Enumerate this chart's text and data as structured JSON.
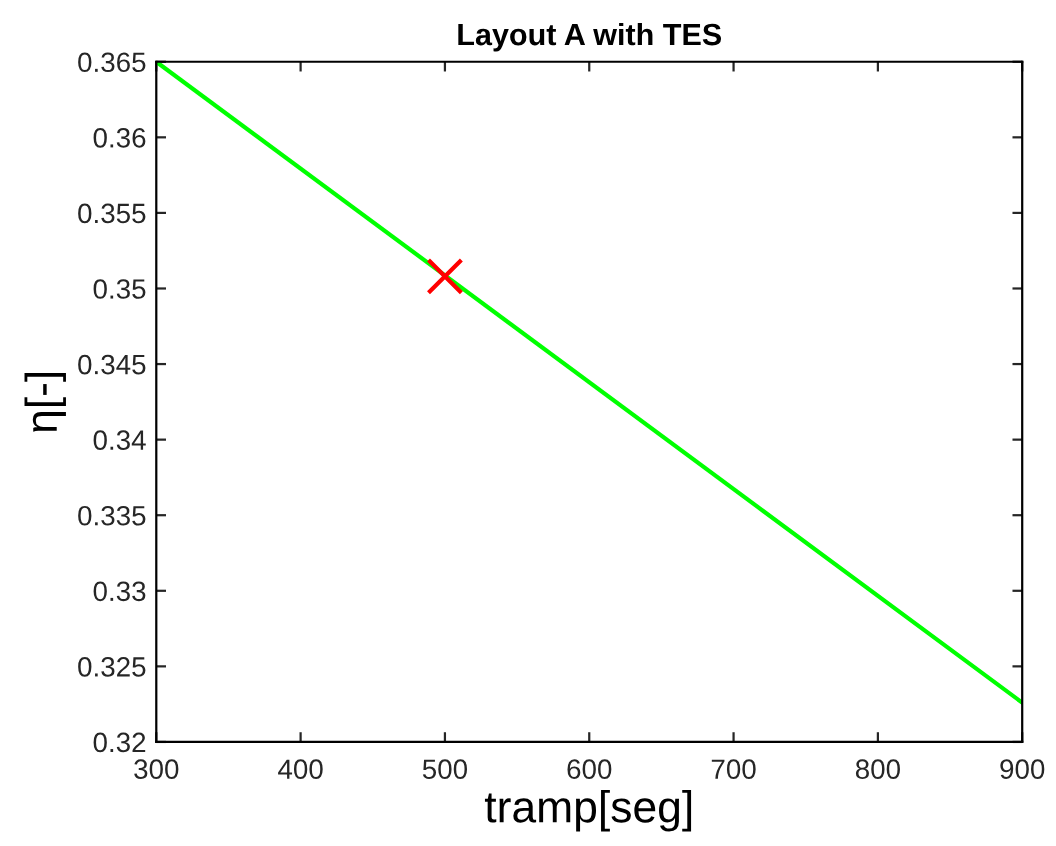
{
  "chart_data": {
    "type": "line",
    "title": "Layout A with TES",
    "xlabel": "tramp[seg]",
    "ylabel": "η[-]",
    "series": [
      {
        "color": "#00ff00",
        "x": [
          300,
          900
        ],
        "values": [
          0.365,
          0.3226
        ],
        "marker": "none"
      },
      {
        "type": "scatter",
        "color": "#ff0000",
        "x": [
          500
        ],
        "values": [
          0.3508
        ],
        "marker": "cross"
      }
    ],
    "xlim": [
      300,
      900
    ],
    "xticks": [
      300,
      400,
      500,
      600,
      700,
      800,
      900
    ],
    "ylim": [
      0.32,
      0.365
    ],
    "yticks": [
      {
        "value": 0.32,
        "label": "0.32"
      },
      {
        "value": 0.325,
        "label": "0.325"
      },
      {
        "value": 0.33,
        "label": "0.33"
      },
      {
        "value": 0.335,
        "label": "0.335"
      },
      {
        "value": 0.34,
        "label": "0.34"
      },
      {
        "value": 0.345,
        "label": "0.345"
      },
      {
        "value": 0.35,
        "label": "0.35"
      },
      {
        "value": 0.355,
        "label": "0.355"
      },
      {
        "value": 0.36,
        "label": "0.36"
      },
      {
        "value": 0.365,
        "label": "0.365"
      }
    ],
    "grid": false,
    "legend": false
  }
}
